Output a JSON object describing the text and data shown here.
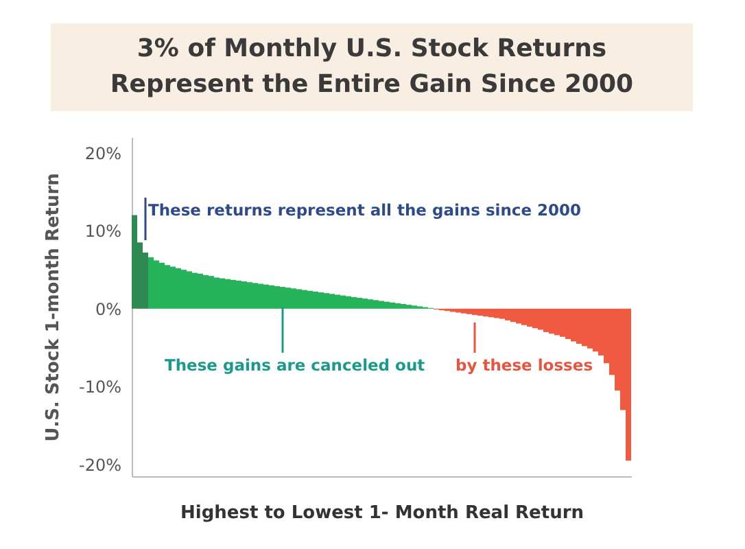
{
  "chart_data": {
    "type": "bar",
    "title": "3% of Monthly U.S. Stock Returns Represent the Entire Gain Since 2000",
    "xlabel": "Highest to Lowest 1- Month Real Return",
    "ylabel": "U.S. Stock 1-month Return",
    "annotations": [
      "These returns represent all the gains since 2000",
      "These gains are canceled out",
      "by these losses"
    ],
    "categories": [
      null,
      null,
      null,
      null,
      null,
      null,
      null,
      null,
      null,
      null,
      null,
      null,
      null,
      null,
      null,
      null,
      null,
      null,
      null,
      null,
      null,
      null,
      null,
      null,
      null,
      null,
      null,
      null,
      null,
      null,
      null,
      null,
      null,
      null,
      null,
      null,
      null,
      null,
      null,
      null,
      null,
      null,
      null,
      null,
      null,
      null,
      null,
      null,
      null,
      null,
      null,
      null,
      null,
      null,
      null,
      null,
      null,
      null,
      null,
      null,
      null,
      null,
      null,
      null,
      null,
      null,
      null,
      null,
      null,
      null,
      null,
      null,
      null,
      null,
      null,
      null,
      null,
      null,
      null,
      null,
      null,
      null,
      null,
      null,
      null,
      null,
      null,
      null,
      null,
      null,
      null
    ],
    "values": [
      12,
      8.5,
      7.2,
      6.6,
      6.2,
      5.9,
      5.6,
      5.4,
      5.2,
      5.0,
      4.8,
      4.6,
      4.5,
      4.3,
      4.2,
      4.0,
      3.9,
      3.8,
      3.7,
      3.6,
      3.5,
      3.4,
      3.3,
      3.2,
      3.1,
      3.0,
      2.9,
      2.8,
      2.7,
      2.6,
      2.5,
      2.4,
      2.3,
      2.2,
      2.1,
      2.0,
      1.9,
      1.8,
      1.7,
      1.6,
      1.5,
      1.4,
      1.3,
      1.2,
      1.1,
      1.0,
      0.9,
      0.8,
      0.7,
      0.6,
      0.5,
      0.4,
      0.3,
      0.2,
      0.1,
      -0.1,
      -0.2,
      -0.3,
      -0.4,
      -0.5,
      -0.6,
      -0.7,
      -0.8,
      -0.9,
      -1.0,
      -1.1,
      -1.2,
      -1.3,
      -1.5,
      -1.7,
      -1.9,
      -2.1,
      -2.3,
      -2.5,
      -2.7,
      -3.0,
      -3.2,
      -3.4,
      -3.6,
      -3.9,
      -4.2,
      -4.5,
      -4.8,
      -5.1,
      -5.5,
      -6.0,
      -7.0,
      -8.5,
      -10.5,
      -13.0,
      -19.5
    ],
    "colors": [
      "#2e8a50",
      "#2e8a50",
      "#2e8a50",
      "#27b35b",
      "#27b35b",
      "#27b35b",
      "#27b35b",
      "#27b35b",
      "#27b35b",
      "#27b35b",
      "#27b35b",
      "#27b35b",
      "#27b35b",
      "#27b35b",
      "#27b35b",
      "#27b35b",
      "#27b35b",
      "#27b35b",
      "#27b35b",
      "#27b35b",
      "#27b35b",
      "#27b35b",
      "#27b35b",
      "#27b35b",
      "#27b35b",
      "#27b35b",
      "#27b35b",
      "#27b35b",
      "#27b35b",
      "#27b35b",
      "#27b35b",
      "#27b35b",
      "#27b35b",
      "#27b35b",
      "#27b35b",
      "#27b35b",
      "#27b35b",
      "#27b35b",
      "#27b35b",
      "#27b35b",
      "#27b35b",
      "#27b35b",
      "#27b35b",
      "#27b35b",
      "#27b35b",
      "#27b35b",
      "#27b35b",
      "#27b35b",
      "#27b35b",
      "#27b35b",
      "#27b35b",
      "#27b35b",
      "#27b35b",
      "#27b35b",
      "#27b35b",
      "#f05a40",
      "#f05a40",
      "#f05a40",
      "#f05a40",
      "#f05a40",
      "#f05a40",
      "#f05a40",
      "#f05a40",
      "#f05a40",
      "#f05a40",
      "#f05a40",
      "#f05a40",
      "#f05a40",
      "#f05a40",
      "#f05a40",
      "#f05a40",
      "#f05a40",
      "#f05a40",
      "#f05a40",
      "#f05a40",
      "#f05a40",
      "#f05a40",
      "#f05a40",
      "#f05a40",
      "#f05a40",
      "#f05a40",
      "#f05a40",
      "#f05a40",
      "#f05a40",
      "#f05a40",
      "#f05a40",
      "#f05a40",
      "#f05a40",
      "#f05a40",
      "#f05a40",
      "#f05a40"
    ],
    "ylim": [
      -21.5,
      22
    ],
    "yticks": [
      {
        "value": 20,
        "label": "20%"
      },
      {
        "value": 10,
        "label": "10%"
      },
      {
        "value": 0,
        "label": "0%"
      },
      {
        "value": -10,
        "label": "-10%"
      },
      {
        "value": -20,
        "label": "-20%"
      }
    ],
    "grid": false
  }
}
